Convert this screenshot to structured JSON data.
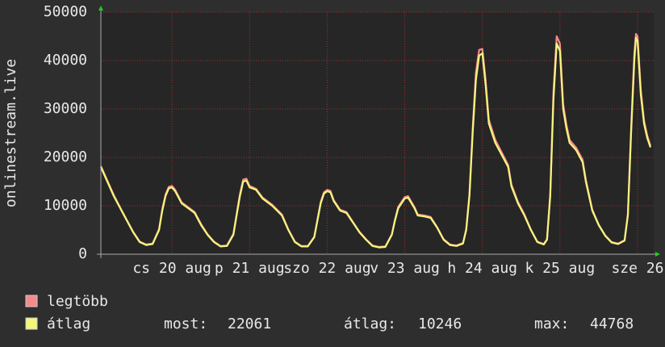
{
  "chart_data": {
    "type": "line",
    "y_label": "onlinestream.live",
    "x": [
      0,
      2,
      4,
      6,
      8,
      10,
      12,
      14,
      16,
      18,
      19,
      20,
      21,
      22,
      23,
      25,
      27,
      29,
      31,
      33,
      35,
      37,
      39,
      41,
      42,
      43,
      44,
      45,
      46,
      48,
      50,
      53,
      56,
      58,
      60,
      62,
      64,
      66,
      67,
      68,
      69,
      70,
      71,
      72,
      74,
      76,
      78,
      80,
      82,
      84,
      86,
      88,
      90,
      91,
      92,
      93,
      94,
      95,
      97,
      98,
      100,
      102,
      104,
      106,
      108,
      110,
      112,
      113,
      114,
      115,
      116,
      117,
      118,
      119,
      120,
      122,
      124,
      126,
      127,
      129,
      131,
      133,
      135,
      137,
      138,
      139,
      140,
      141,
      142,
      143,
      144,
      145,
      147,
      149,
      150,
      152,
      154,
      156,
      158,
      160,
      162,
      163,
      164,
      165,
      165.5,
      166,
      167,
      168,
      169,
      170
    ],
    "series": [
      {
        "name": "legtöbb",
        "color": "#f58a8a",
        "values": [
          18200,
          15200,
          12200,
          9600,
          7100,
          4600,
          2600,
          2000,
          2200,
          5200,
          9300,
          12300,
          13900,
          14100,
          13300,
          10700,
          9700,
          8700,
          6200,
          4100,
          2600,
          1700,
          1800,
          4200,
          8300,
          12400,
          15400,
          15600,
          14100,
          13500,
          11700,
          10200,
          8200,
          5100,
          2600,
          1700,
          1700,
          3600,
          7200,
          10800,
          12800,
          13300,
          13100,
          11200,
          9200,
          8700,
          6600,
          4600,
          3100,
          1800,
          1500,
          1600,
          4100,
          7200,
          9800,
          10800,
          11800,
          12000,
          9700,
          8200,
          8000,
          7700,
          5600,
          3100,
          2000,
          1800,
          2300,
          5200,
          12500,
          26000,
          37500,
          42200,
          42400,
          36000,
          27800,
          23600,
          21000,
          18400,
          14400,
          10800,
          8200,
          5100,
          2600,
          2100,
          3100,
          12500,
          33500,
          45000,
          43500,
          31000,
          26800,
          23600,
          22000,
          19500,
          15400,
          9200,
          6100,
          3900,
          2500,
          2200,
          2900,
          8300,
          26000,
          41500,
          45500,
          45000,
          34000,
          27600,
          24500,
          22400
        ]
      },
      {
        "name": "átlag",
        "color": "#f5f57e",
        "values": [
          18000,
          15000,
          12000,
          9500,
          7000,
          4500,
          2500,
          1900,
          2100,
          5000,
          9000,
          12000,
          13600,
          13800,
          13000,
          10500,
          9500,
          8500,
          6000,
          4000,
          2500,
          1600,
          1700,
          4000,
          8000,
          12000,
          15000,
          15200,
          13800,
          13300,
          11500,
          10000,
          8000,
          5000,
          2500,
          1600,
          1600,
          3500,
          7000,
          10500,
          12500,
          13000,
          12800,
          11000,
          9000,
          8500,
          6500,
          4500,
          3000,
          1700,
          1400,
          1500,
          4000,
          7000,
          9500,
          10500,
          11500,
          11700,
          9500,
          8000,
          7800,
          7500,
          5500,
          3000,
          1900,
          1700,
          2200,
          5000,
          12000,
          25000,
          36000,
          41000,
          41500,
          35000,
          27000,
          23000,
          20500,
          18000,
          14000,
          10500,
          8000,
          5000,
          2500,
          2000,
          3000,
          12000,
          32000,
          43500,
          42000,
          30000,
          26000,
          23000,
          21500,
          19000,
          15000,
          9000,
          6000,
          3800,
          2400,
          2100,
          2800,
          8000,
          25000,
          40000,
          44700,
          44000,
          33000,
          27000,
          24000,
          22061
        ]
      }
    ],
    "xlim": [
      0,
      171
    ],
    "xticks": [
      {
        "value": 22,
        "label": "cs 20 aug"
      },
      {
        "value": 46,
        "label": "p 21 aug"
      },
      {
        "value": 70,
        "label": "szo 22 aug"
      },
      {
        "value": 94,
        "label": "v 23 aug"
      },
      {
        "value": 118,
        "label": "h 24 aug"
      },
      {
        "value": 142,
        "label": "k 25 aug"
      },
      {
        "value": 166,
        "label": "sze 26"
      }
    ],
    "ylim": [
      0,
      50000
    ],
    "yticks": [
      0,
      10000,
      20000,
      30000,
      40000,
      50000
    ],
    "grid": true,
    "stats": [
      {
        "label": "most:",
        "value": 22061
      },
      {
        "label": "átlag:",
        "value": 10246
      },
      {
        "label": "max:",
        "value": 44768
      }
    ]
  }
}
